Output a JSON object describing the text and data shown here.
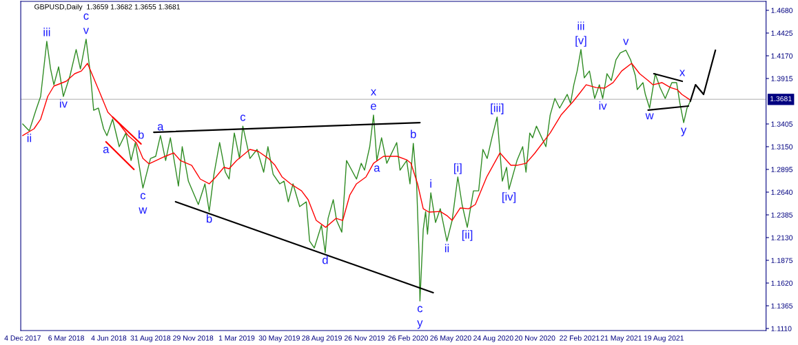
{
  "chart_data": {
    "type": "line",
    "title": "GBPUSD,Daily  1.3659 1.3682 1.3655 1.3681",
    "xlim": [
      "2017-11-30",
      "2022-03-23"
    ],
    "ylim": [
      1.1087,
      1.478
    ],
    "xticks": [
      {
        "value": "2017-12-04",
        "label": "4 Dec 2017"
      },
      {
        "value": "2018-03-06",
        "label": "6 Mar 2018"
      },
      {
        "value": "2018-06-04",
        "label": "4 Jun 2018"
      },
      {
        "value": "2018-08-31",
        "label": "31 Aug 2018"
      },
      {
        "value": "2018-11-29",
        "label": "29 Nov 2018"
      },
      {
        "value": "2019-03-01",
        "label": "1 Mar 2019"
      },
      {
        "value": "2019-05-30",
        "label": "30 May 2019"
      },
      {
        "value": "2019-08-28",
        "label": "28 Aug 2019"
      },
      {
        "value": "2019-11-26",
        "label": "26 Nov 2019"
      },
      {
        "value": "2020-02-26",
        "label": "26 Feb 2020"
      },
      {
        "value": "2020-05-26",
        "label": "26 May 2020"
      },
      {
        "value": "2020-08-24",
        "label": "24 Aug 2020"
      },
      {
        "value": "2020-11-20",
        "label": "20 Nov 2020"
      },
      {
        "value": "2021-02-22",
        "label": "22 Feb 2021"
      },
      {
        "value": "2021-05-21",
        "label": "21 May 2021"
      },
      {
        "value": "2021-08-19",
        "label": "19 Aug 2021"
      }
    ],
    "yticks": [
      {
        "value": 1.468,
        "label": "1.4680"
      },
      {
        "value": 1.4425,
        "label": "1.4425"
      },
      {
        "value": 1.417,
        "label": "1.4170"
      },
      {
        "value": 1.3915,
        "label": "1.3915"
      },
      {
        "value": 1.3405,
        "label": "1.3405"
      },
      {
        "value": 1.315,
        "label": "1.3150"
      },
      {
        "value": 1.2895,
        "label": "1.2895"
      },
      {
        "value": 1.264,
        "label": "1.2640"
      },
      {
        "value": 1.2385,
        "label": "1.2385"
      },
      {
        "value": 1.213,
        "label": "1.2130"
      },
      {
        "value": 1.1875,
        "label": "1.1875"
      },
      {
        "value": 1.162,
        "label": "1.1620"
      },
      {
        "value": 1.1365,
        "label": "1.1365"
      },
      {
        "value": 1.111,
        "label": "1.1110"
      }
    ],
    "grid": false,
    "ref_lines": [
      {
        "axis": "y",
        "value": 1.3681,
        "label": "1.3681",
        "color": "#c8c8c8"
      }
    ],
    "series": [
      {
        "color": "#2e8b22",
        "x": [
          "2017-12-04",
          "2017-12-18",
          "2018-01-01",
          "2018-01-11",
          "2018-01-24",
          "2018-02-01",
          "2018-02-08",
          "2018-02-18",
          "2018-02-28",
          "2018-03-14",
          "2018-03-27",
          "2018-04-05",
          "2018-04-17",
          "2018-04-26",
          "2018-05-03",
          "2018-05-13",
          "2018-05-24",
          "2018-05-31",
          "2018-06-12",
          "2018-06-26",
          "2018-07-10",
          "2018-07-21",
          "2018-07-30",
          "2018-08-15",
          "2018-08-31",
          "2018-09-11",
          "2018-09-21",
          "2018-10-02",
          "2018-10-12",
          "2018-10-29",
          "2018-11-06",
          "2018-11-19",
          "2018-12-10",
          "2018-12-24",
          "2019-01-02",
          "2019-01-12",
          "2019-01-24",
          "2019-02-05",
          "2019-02-13",
          "2019-02-24",
          "2019-03-07",
          "2019-03-14",
          "2019-03-29",
          "2019-04-13",
          "2019-04-27",
          "2019-05-06",
          "2019-05-17",
          "2019-05-31",
          "2019-06-09",
          "2019-06-18",
          "2019-06-28",
          "2019-07-12",
          "2019-07-26",
          "2019-08-02",
          "2019-08-12",
          "2019-08-27",
          "2019-09-04",
          "2019-09-10",
          "2019-09-21",
          "2019-09-28",
          "2019-10-09",
          "2019-10-19",
          "2019-11-09",
          "2019-11-19",
          "2019-11-26",
          "2019-12-07",
          "2019-12-15",
          "2019-12-22",
          "2020-01-01",
          "2020-01-12",
          "2020-02-02",
          "2020-02-09",
          "2020-02-23",
          "2020-03-01",
          "2020-03-08",
          "2020-03-15",
          "2020-03-20",
          "2020-03-22",
          "2020-03-29",
          "2020-04-03",
          "2020-04-07",
          "2020-04-14",
          "2020-04-24",
          "2020-05-04",
          "2020-05-18",
          "2020-05-29",
          "2020-06-10",
          "2020-06-19",
          "2020-06-30",
          "2020-07-13",
          "2020-07-24",
          "2020-08-02",
          "2020-08-11",
          "2020-08-21",
          "2020-09-01",
          "2020-09-12",
          "2020-09-21",
          "2020-09-26",
          "2020-10-13",
          "2020-10-25",
          "2020-11-01",
          "2020-11-09",
          "2020-11-15",
          "2020-11-23",
          "2020-12-13",
          "2020-12-22",
          "2021-01-01",
          "2021-01-11",
          "2021-01-27",
          "2021-02-03",
          "2021-02-10",
          "2021-02-17",
          "2021-02-25",
          "2021-03-04",
          "2021-03-15",
          "2021-03-26",
          "2021-04-05",
          "2021-04-12",
          "2021-04-21",
          "2021-04-30",
          "2021-05-10",
          "2021-05-19",
          "2021-05-31",
          "2021-06-10",
          "2021-06-20",
          "2021-06-24",
          "2021-07-06",
          "2021-07-11",
          "2021-07-20",
          "2021-08-01",
          "2021-08-04",
          "2021-08-11",
          "2021-08-22",
          "2021-09-05",
          "2021-09-15",
          "2021-09-22",
          "2021-09-30",
          "2021-10-07",
          "2021-10-14"
        ],
        "values": [
          1.3405,
          1.3327,
          1.3559,
          1.3714,
          1.4332,
          1.4023,
          1.3845,
          1.4046,
          1.3714,
          1.3946,
          1.424,
          1.4023,
          1.4356,
          1.3969,
          1.3559,
          1.3583,
          1.3351,
          1.3274,
          1.3459,
          1.315,
          1.3304,
          1.2995,
          1.3196,
          1.2686,
          1.3018,
          1.3042,
          1.3274,
          1.2995,
          1.325,
          1.2709,
          1.315,
          1.2763,
          1.2501,
          1.2733,
          1.2423,
          1.284,
          1.3196,
          1.2864,
          1.2787,
          1.3304,
          1.3018,
          1.3381,
          1.3018,
          1.3119,
          1.2864,
          1.315,
          1.284,
          1.2733,
          1.2763,
          1.2531,
          1.2733,
          1.2478,
          1.2531,
          1.2091,
          1.2014,
          1.2269,
          1.196,
          1.2346,
          1.2555,
          1.2323,
          1.2191,
          1.2995,
          1.2787,
          1.2964,
          1.2887,
          1.315,
          1.3505,
          1.2995,
          1.325,
          1.2964,
          1.3196,
          1.2887,
          1.2995,
          1.2733,
          1.3188,
          1.2733,
          1.196,
          1.1419,
          1.2222,
          1.2423,
          1.2169,
          1.2632,
          1.23,
          1.2454,
          1.2091,
          1.2323,
          1.281,
          1.2501,
          1.2245,
          1.2655,
          1.2655,
          1.3119,
          1.3018,
          1.325,
          1.3482,
          1.2763,
          1.2918,
          1.2671,
          1.2995,
          1.315,
          1.2864,
          1.3304,
          1.325,
          1.3381,
          1.315,
          1.3505,
          1.3691,
          1.3583,
          1.3737,
          1.3637,
          1.3845,
          1.3999,
          1.424,
          1.3923,
          1.3999,
          1.3691,
          1.3845,
          1.3691,
          1.3969,
          1.3892,
          1.4124,
          1.4201,
          1.4232,
          1.4124,
          1.3946,
          1.3791,
          1.3869,
          1.3737,
          1.3583,
          1.3969,
          1.3923,
          1.3814,
          1.3691,
          1.3869,
          1.3869,
          1.3637,
          1.342,
          1.3583,
          1.366
        ]
      },
      {
        "color": "#ff0000",
        "x": [
          "2017-12-04",
          "2017-12-28",
          "2018-01-11",
          "2018-01-26",
          "2018-02-08",
          "2018-03-06",
          "2018-03-24",
          "2018-04-07",
          "2018-04-20",
          "2018-05-01",
          "2018-05-15",
          "2018-06-02",
          "2018-06-26",
          "2018-07-15",
          "2018-08-01",
          "2018-08-15",
          "2018-08-28",
          "2018-10-01",
          "2018-10-19",
          "2018-11-02",
          "2018-11-26",
          "2018-12-14",
          "2019-01-02",
          "2019-01-16",
          "2019-02-02",
          "2019-02-13",
          "2019-03-01",
          "2019-03-29",
          "2019-04-16",
          "2019-05-07",
          "2019-05-21",
          "2019-06-05",
          "2019-06-23",
          "2019-07-16",
          "2019-07-30",
          "2019-08-16",
          "2019-09-05",
          "2019-09-27",
          "2019-10-11",
          "2019-10-26",
          "2019-11-09",
          "2019-11-29",
          "2019-12-15",
          "2020-01-05",
          "2020-02-03",
          "2020-02-23",
          "2020-03-03",
          "2020-03-17",
          "2020-03-29",
          "2020-04-10",
          "2020-05-04",
          "2020-05-18",
          "2020-05-29",
          "2020-06-15",
          "2020-07-03",
          "2020-07-17",
          "2020-08-10",
          "2020-09-07",
          "2020-09-30",
          "2020-10-13",
          "2020-11-01",
          "2020-11-19",
          "2020-12-22",
          "2021-01-14",
          "2021-02-09",
          "2021-02-25",
          "2021-03-08",
          "2021-03-29",
          "2021-04-16",
          "2021-05-04",
          "2021-05-22",
          "2021-06-12",
          "2021-06-29",
          "2021-07-17",
          "2021-07-27",
          "2021-08-15",
          "2021-09-02",
          "2021-09-16",
          "2021-09-26",
          "2021-10-13"
        ],
        "values": [
          1.3274,
          1.3351,
          1.3459,
          1.3714,
          1.383,
          1.3884,
          1.3969,
          1.3999,
          1.4085,
          1.3946,
          1.3768,
          1.3536,
          1.3405,
          1.3274,
          1.3196,
          1.3018,
          1.2957,
          1.3042,
          1.308,
          1.2995,
          1.2941,
          1.2787,
          1.2733,
          1.281,
          1.2918,
          1.2903,
          1.2995,
          1.3119,
          1.3096,
          1.3018,
          1.2941,
          1.281,
          1.2733,
          1.2655,
          1.2555,
          1.2323,
          1.2245,
          1.2346,
          1.2323,
          1.2609,
          1.2733,
          1.281,
          1.2964,
          1.3042,
          1.3042,
          1.3003,
          1.2964,
          1.2733,
          1.2454,
          1.2416,
          1.2423,
          1.2377,
          1.2323,
          1.2462,
          1.2454,
          1.2501,
          1.281,
          1.308,
          1.2941,
          1.2941,
          1.2964,
          1.3073,
          1.3304,
          1.3505,
          1.366,
          1.3768,
          1.3845,
          1.3814,
          1.3807,
          1.3869,
          1.3999,
          1.4085,
          1.3969,
          1.3892,
          1.3845,
          1.3869,
          1.3814,
          1.3791,
          1.3737,
          1.3676
        ]
      },
      {
        "color": "#000000",
        "x": [
          "2021-10-14",
          "2021-10-25",
          "2021-11-11",
          "2021-12-06"
        ],
        "values": [
          1.366,
          1.3845,
          1.3737,
          1.4232
        ]
      },
      {
        "color": "#000000",
        "x": [
          "2018-09-07",
          "2020-03-22"
        ],
        "values": [
          1.3312,
          1.342
        ]
      },
      {
        "color": "#000000",
        "x": [
          "2018-10-23",
          "2020-04-19"
        ],
        "values": [
          1.2532,
          1.1512
        ]
      },
      {
        "color": "#ff0000",
        "x": [
          "2018-06-12",
          "2018-08-11"
        ],
        "values": [
          1.3482,
          1.3181
        ]
      },
      {
        "color": "#ff0000",
        "x": [
          "2018-05-29",
          "2018-07-27"
        ],
        "values": [
          1.3204,
          1.2895
        ]
      },
      {
        "color": "#000000",
        "x": [
          "2021-07-29",
          "2021-09-27"
        ],
        "values": [
          1.3969,
          1.3884
        ]
      },
      {
        "color": "#000000",
        "x": [
          "2021-07-17",
          "2021-10-10"
        ],
        "values": [
          1.356,
          1.3606
        ]
      }
    ],
    "annotations": [
      {
        "text": "v",
        "x": "2018-04-17",
        "y": 1.4356
      },
      {
        "text": "c",
        "x": "2018-04-17",
        "y": 1.4356
      },
      {
        "text": "iii",
        "x": "2018-01-24",
        "y": 1.4332
      },
      {
        "text": "iv",
        "x": "2018-02-28",
        "y": 1.3714
      },
      {
        "text": "ii",
        "x": "2017-12-18",
        "y": 1.3327
      },
      {
        "text": "b",
        "x": "2018-08-11",
        "y": 1.3181
      },
      {
        "text": "a",
        "x": "2018-05-29",
        "y": 1.3204
      },
      {
        "text": "c",
        "x": "2018-08-15",
        "y": 1.2686
      },
      {
        "text": "w",
        "x": "2018-08-15",
        "y": 1.2686
      },
      {
        "text": "a",
        "x": "2018-09-21",
        "y": 1.3274
      },
      {
        "text": "c",
        "x": "2019-03-14",
        "y": 1.3381
      },
      {
        "text": "b",
        "x": "2019-01-02",
        "y": 1.2423
      },
      {
        "text": "e",
        "x": "2019-12-15",
        "y": 1.3505
      },
      {
        "text": "x",
        "x": "2019-12-15",
        "y": 1.3505
      },
      {
        "text": "a",
        "x": "2019-12-22",
        "y": 1.2995
      },
      {
        "text": "d",
        "x": "2019-09-04",
        "y": 1.196
      },
      {
        "text": "b",
        "x": "2020-03-08",
        "y": 1.3188
      },
      {
        "text": "c",
        "x": "2020-03-22",
        "y": 1.1419
      },
      {
        "text": "y",
        "x": "2020-03-22",
        "y": 1.1419
      },
      {
        "text": "i",
        "x": "2020-04-14",
        "y": 1.2632
      },
      {
        "text": "ii",
        "x": "2020-05-18",
        "y": 1.2091
      },
      {
        "text": "[i]",
        "x": "2020-06-10",
        "y": 1.281
      },
      {
        "text": "[ii]",
        "x": "2020-06-30",
        "y": 1.2245
      },
      {
        "text": "[iii]",
        "x": "2020-09-01",
        "y": 1.3482
      },
      {
        "text": "[iv]",
        "x": "2020-09-26",
        "y": 1.2671
      },
      {
        "text": "[v]",
        "x": "2021-02-25",
        "y": 1.424
      },
      {
        "text": "iii",
        "x": "2021-02-25",
        "y": 1.424
      },
      {
        "text": "v",
        "x": "2021-05-31",
        "y": 1.4232
      },
      {
        "text": "iv",
        "x": "2021-04-12",
        "y": 1.3691
      },
      {
        "text": "w",
        "x": "2021-07-20",
        "y": 1.3583
      },
      {
        "text": "x",
        "x": "2021-09-27",
        "y": 1.3884
      },
      {
        "text": "y",
        "x": "2021-09-30",
        "y": 1.342
      }
    ]
  }
}
